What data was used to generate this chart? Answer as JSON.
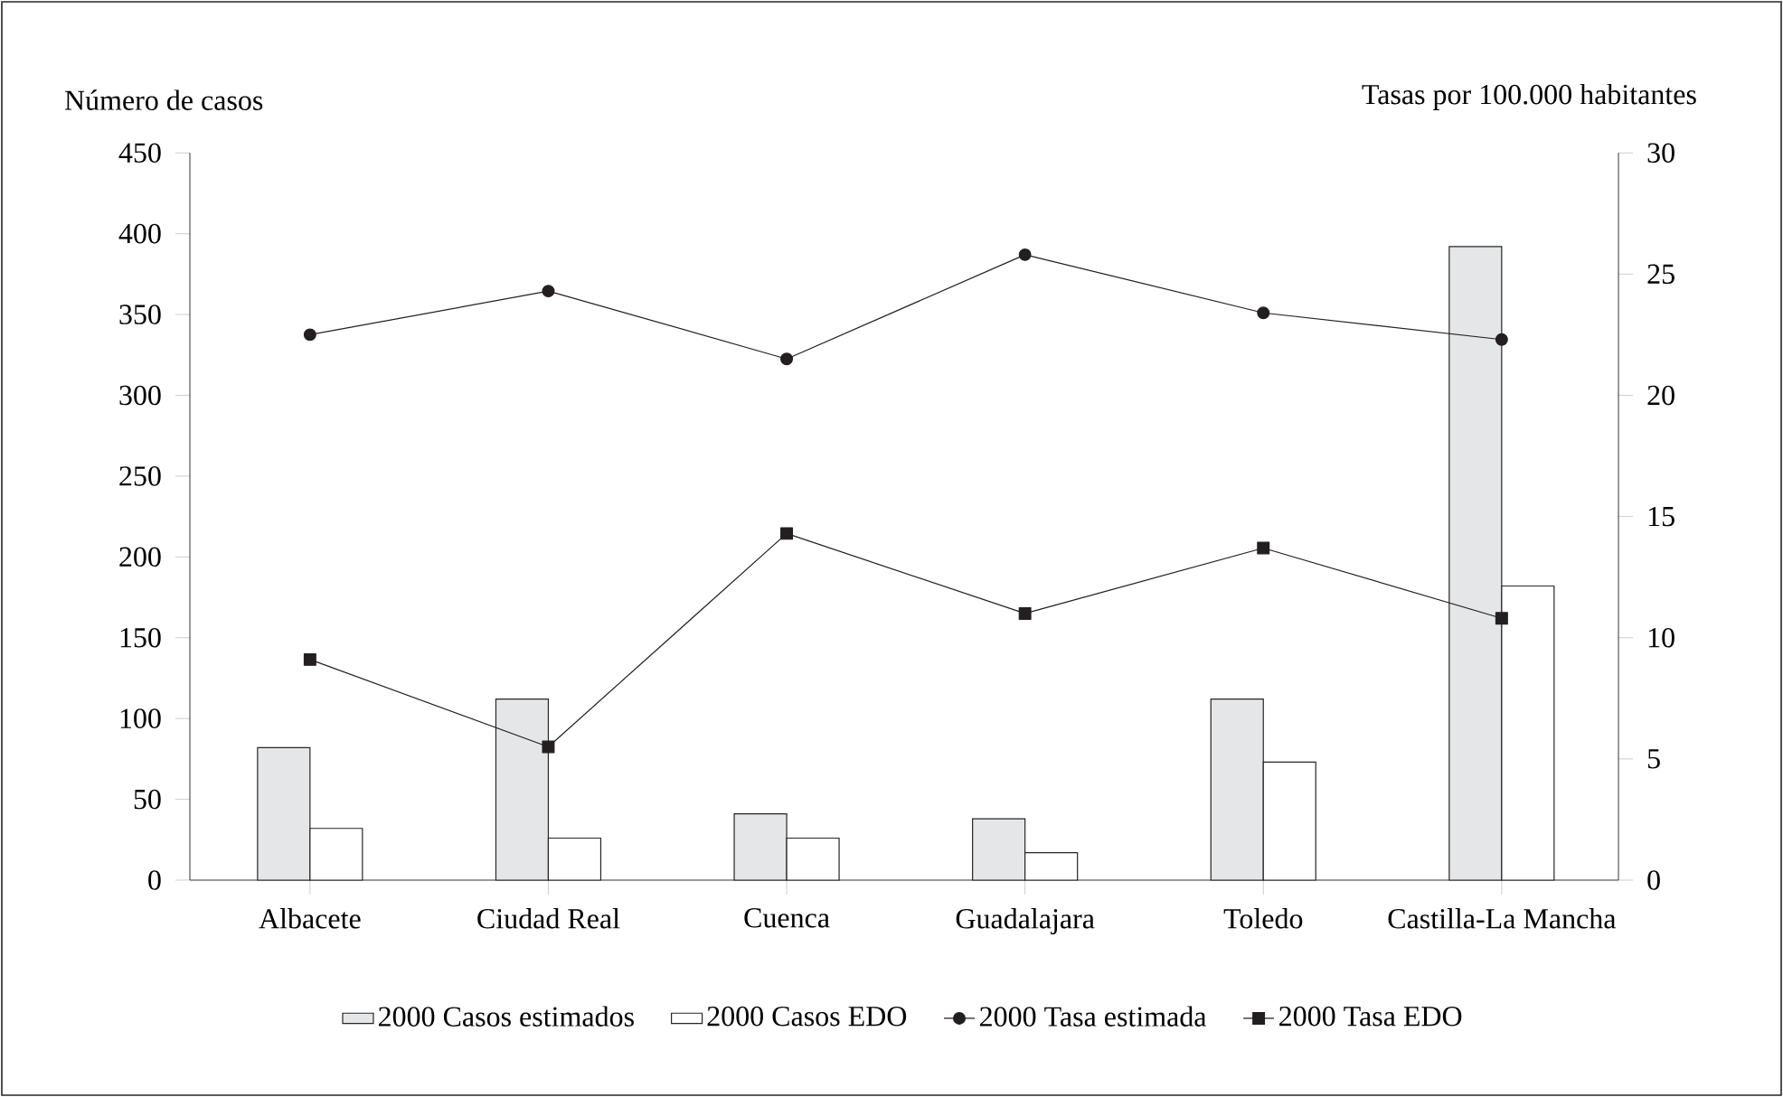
{
  "chart_data": {
    "type": "bar",
    "categories": [
      "Albacete",
      "Ciudad Real",
      "Cuenca",
      "Guadalajara",
      "Toledo",
      "Castilla-La Mancha"
    ],
    "ylabel": "Número de casos",
    "y2label": "Tasas por 100.000 habitantes",
    "ylim": [
      0,
      450
    ],
    "yticks": [
      0,
      50,
      100,
      150,
      200,
      250,
      300,
      350,
      400,
      450
    ],
    "y2lim": [
      0,
      30
    ],
    "y2ticks": [
      0,
      5,
      10,
      15,
      20,
      25,
      30
    ],
    "legend": "bottom",
    "grid": false,
    "series": [
      {
        "name": "2000 Casos estimados",
        "color": "#e5e6e8",
        "values": [
          82,
          112,
          41,
          38,
          112,
          392
        ]
      },
      {
        "name": "2000 Casos EDO",
        "color": "#ffffff",
        "values": [
          32,
          26,
          26,
          17,
          73,
          182
        ]
      },
      {
        "name": "2000 Tasa estimada",
        "type": "line",
        "axis": "y2",
        "marker": "circle",
        "color": "#231f20",
        "values": [
          22.5,
          24.3,
          21.5,
          25.8,
          23.4,
          22.3
        ]
      },
      {
        "name": "2000 Tasa EDO",
        "type": "line",
        "axis": "y2",
        "marker": "square",
        "color": "#231f20",
        "values": [
          9.1,
          5.5,
          14.3,
          11.0,
          13.7,
          10.8
        ]
      }
    ]
  }
}
